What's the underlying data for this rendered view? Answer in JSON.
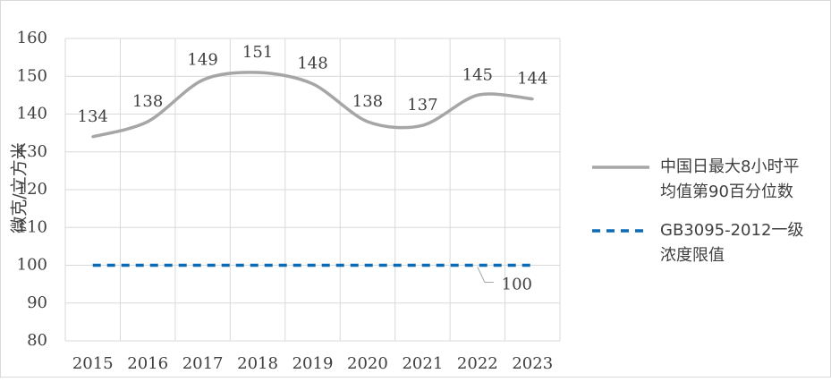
{
  "chart_data": {
    "type": "line",
    "categories": [
      "2015",
      "2016",
      "2017",
      "2018",
      "2019",
      "2020",
      "2021",
      "2022",
      "2023"
    ],
    "series": [
      {
        "name": "中国日最大8小时平均值第90百分位数",
        "name_lines": [
          "中国日最大8小时平",
          "均值第90百分位数"
        ],
        "values": [
          134,
          138,
          149,
          151,
          148,
          138,
          137,
          145,
          144
        ],
        "color": "#a6a6a6",
        "style": "solid"
      },
      {
        "name": "GB3095-2012一级浓度限值",
        "name_lines": [
          "GB3095-2012一级",
          "浓度限值"
        ],
        "values": [
          100,
          100,
          100,
          100,
          100,
          100,
          100,
          100,
          100
        ],
        "color": "#0b6cb3",
        "style": "dashed",
        "data_label": "100"
      }
    ],
    "ylabel": "微克/立方米",
    "ylim": [
      80,
      160
    ],
    "yticks": [
      "80",
      "90",
      "100",
      "110",
      "120",
      "130",
      "140",
      "150",
      "160"
    ],
    "grid": true,
    "legend": "right"
  }
}
